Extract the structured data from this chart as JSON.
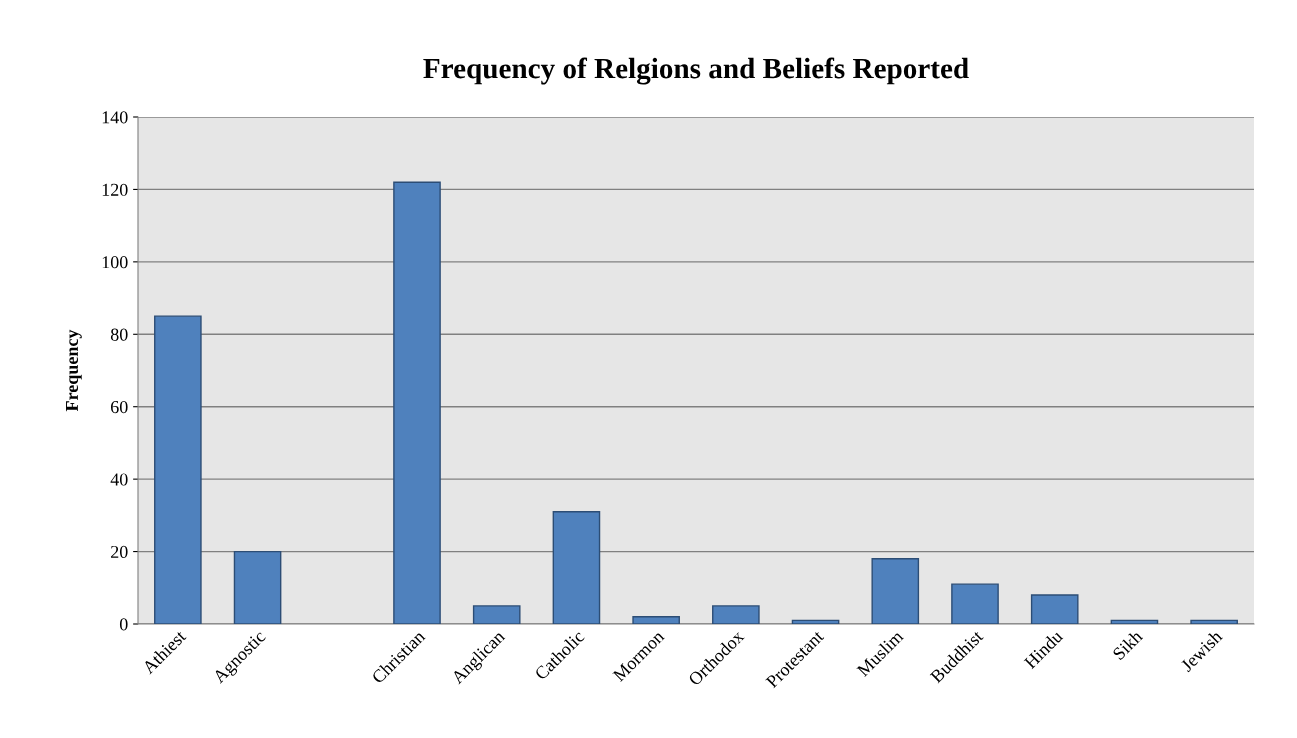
{
  "chart_data": {
    "type": "bar",
    "title": "Frequency of Relgions and Beliefs Reported",
    "ylabel": "Frequency",
    "categories": [
      "Athiest",
      "Agnostic",
      null,
      "Christian",
      "Anglican",
      "Catholic",
      "Mormon",
      "Orthodox",
      "Protestant",
      "Muslim",
      "Buddhist",
      "Hindu",
      "Sikh",
      "Jewish"
    ],
    "values": [
      85,
      20,
      null,
      122,
      5,
      31,
      2,
      5,
      1,
      18,
      11,
      8,
      1,
      1
    ],
    "color": "#4f81bd",
    "ylim": [
      0,
      140
    ],
    "yticks": [
      0,
      20,
      40,
      60,
      80,
      100,
      120,
      140
    ],
    "grid": "y",
    "legend": false
  }
}
